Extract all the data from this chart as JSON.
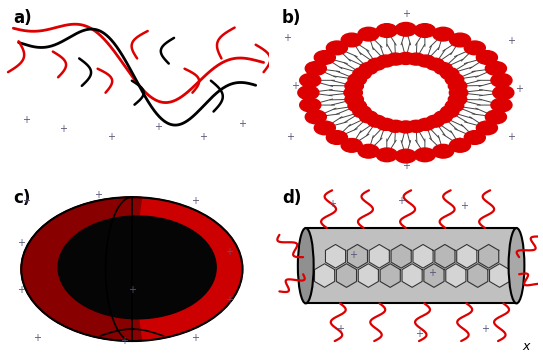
{
  "bg_color": "#ffffff",
  "label_a": "a)",
  "label_b": "b)",
  "label_c": "c)",
  "label_d": "d)",
  "label_x": "x",
  "red_color": "#dd0000",
  "black_color": "#000000",
  "plus_color": "#555577"
}
